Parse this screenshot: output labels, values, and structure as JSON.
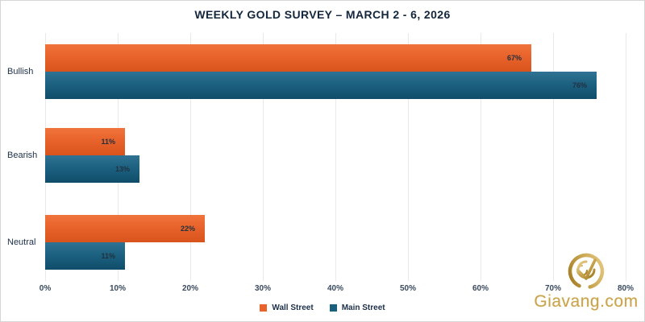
{
  "title": "WEEKLY GOLD SURVEY – MARCH 2 - 6, 2026",
  "chart_data": {
    "type": "bar",
    "orientation": "horizontal",
    "title": "WEEKLY GOLD SURVEY – MARCH 2 - 6, 2026",
    "categories": [
      "Bullish",
      "Bearish",
      "Neutral"
    ],
    "series": [
      {
        "name": "Wall Street",
        "color": "#E8632B",
        "values": [
          67,
          11,
          22
        ]
      },
      {
        "name": "Main Street",
        "color": "#1B5F7E",
        "values": [
          76,
          13,
          11
        ]
      }
    ],
    "data_labels": [
      [
        "67%",
        "11%",
        "22%"
      ],
      [
        "76%",
        "13%",
        "11%"
      ]
    ],
    "xlim": [
      0,
      80
    ],
    "x_ticks": [
      "0%",
      "10%",
      "20%",
      "30%",
      "40%",
      "50%",
      "60%",
      "70%",
      "80%"
    ],
    "grid": true,
    "legend_position": "bottom"
  },
  "legend": {
    "items": [
      {
        "label": "Wall Street",
        "color": "#E8632B"
      },
      {
        "label": "Main Street",
        "color": "#1B5F7E"
      }
    ]
  },
  "watermark": {
    "text": "Giavang.com",
    "color": "#C8A44E",
    "logo": "gold-check-circle-logo"
  }
}
